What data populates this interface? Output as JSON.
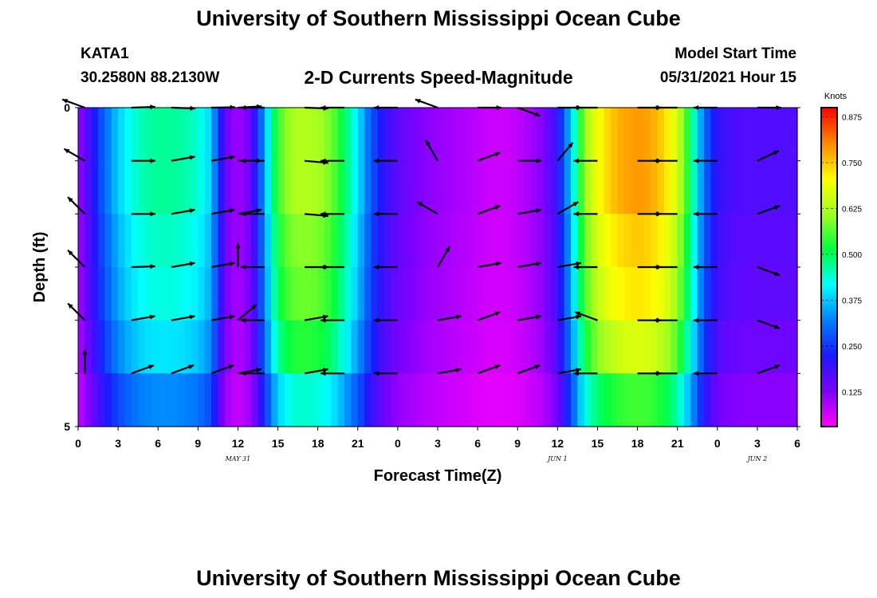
{
  "header": {
    "title": "University of Southern Mississippi Ocean Cube",
    "station": "KATA1",
    "coords": "30.2580N  88.2130W",
    "subtitle": "2-D Currents Speed-Magnitude",
    "model_label": "Model Start Time",
    "model_time": "05/31/2021 Hour 15"
  },
  "footer": {
    "title": "University of Southern Mississippi Ocean Cube"
  },
  "colors": {
    "scale": [
      "#ff00ff",
      "#8000ff",
      "#1a1aff",
      "#0080ff",
      "#00ffff",
      "#00ff40",
      "#a0ff20",
      "#ffff00",
      "#ff8800",
      "#ff0000"
    ]
  },
  "chart_data": {
    "type": "heatmap",
    "title": "2-D Currents Speed-Magnitude",
    "xlabel": "Forecast Time(Z)",
    "ylabel": "Depth (ft)",
    "ylim": [
      0,
      5
    ],
    "ytick_labels": [
      "0",
      "5"
    ],
    "xlim": [
      0,
      54
    ],
    "x_ticks": [
      0,
      3,
      6,
      9,
      12,
      15,
      18,
      21,
      24,
      27,
      30,
      33,
      36,
      39,
      42,
      45,
      48,
      51,
      54
    ],
    "x_tick_labels": [
      "0",
      "3",
      "6",
      "9",
      "12",
      "15",
      "18",
      "21",
      "0",
      "3",
      "6",
      "9",
      "12",
      "15",
      "18",
      "21",
      "0",
      "3",
      "6"
    ],
    "date_labels": [
      {
        "x": 12,
        "label": "MAY 31"
      },
      {
        "x": 36,
        "label": "JUN 1"
      },
      {
        "x": 51,
        "label": "JUN 2"
      }
    ],
    "colorbar": {
      "label": "Knots",
      "min": 0.03,
      "max": 0.9,
      "ticks": [
        "0.875",
        "0.750",
        "0.625",
        "0.500",
        "0.375",
        "0.250",
        "0.125"
      ],
      "tick_values": [
        0.875,
        0.75,
        0.625,
        0.5,
        0.375,
        0.25,
        0.125
      ]
    },
    "speed_profile": {
      "hours": [
        0,
        1,
        2,
        3,
        4,
        5,
        6,
        7,
        8,
        9,
        10,
        11,
        12,
        13,
        14,
        15,
        16,
        17,
        18,
        19,
        20,
        21,
        22,
        23,
        24,
        25,
        26,
        27,
        28,
        29,
        30,
        31,
        32,
        33,
        34,
        35,
        36,
        37,
        38,
        39,
        40,
        41,
        42,
        43,
        44,
        45,
        46,
        47,
        48,
        49,
        50,
        51,
        52,
        53,
        54
      ],
      "knots": [
        0.1,
        0.2,
        0.3,
        0.38,
        0.43,
        0.46,
        0.47,
        0.47,
        0.46,
        0.44,
        0.38,
        0.15,
        0.1,
        0.15,
        0.35,
        0.55,
        0.62,
        0.63,
        0.62,
        0.58,
        0.5,
        0.4,
        0.28,
        0.2,
        0.16,
        0.14,
        0.12,
        0.11,
        0.1,
        0.09,
        0.08,
        0.07,
        0.07,
        0.08,
        0.1,
        0.13,
        0.2,
        0.38,
        0.6,
        0.7,
        0.75,
        0.78,
        0.79,
        0.78,
        0.74,
        0.66,
        0.5,
        0.3,
        0.2,
        0.18,
        0.17,
        0.17,
        0.17,
        0.17,
        0.17
      ]
    },
    "depth_factor": [
      1.0,
      1.0,
      0.95,
      0.92,
      0.85,
      0.7
    ],
    "arrow_columns": [
      0.5,
      4,
      7,
      10,
      12,
      14,
      17,
      20,
      24,
      27,
      30,
      33,
      36,
      39,
      42,
      45,
      48,
      51
    ],
    "arrow_direction_deg": [
      [
        290,
        88,
        92,
        89,
        87,
        270,
        92,
        270,
        270,
        290,
        90,
        110,
        90,
        270,
        90,
        270,
        270,
        90
      ],
      [
        300,
        90,
        80,
        80,
        90,
        270,
        95,
        270,
        270,
        330,
        70,
        90,
        40,
        270,
        90,
        270,
        270,
        65
      ],
      [
        315,
        90,
        80,
        80,
        80,
        270,
        95,
        270,
        270,
        300,
        70,
        80,
        60,
        270,
        90,
        270,
        270,
        70
      ],
      [
        315,
        88,
        80,
        80,
        0,
        270,
        90,
        270,
        270,
        30,
        80,
        80,
        80,
        270,
        90,
        270,
        270,
        110
      ],
      [
        315,
        80,
        80,
        80,
        50,
        270,
        80,
        270,
        270,
        80,
        70,
        80,
        80,
        290,
        90,
        270,
        270,
        110
      ],
      [
        0,
        70,
        70,
        70,
        80,
        270,
        80,
        270,
        270,
        80,
        70,
        70,
        80,
        270,
        90,
        270,
        270,
        70
      ]
    ]
  }
}
